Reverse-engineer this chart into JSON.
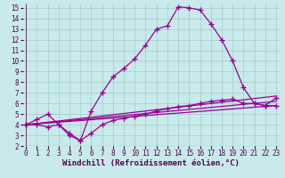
{
  "background_color": "#c8eaea",
  "grid_color": "#a0cccc",
  "line_color": "#990099",
  "xlim": [
    -0.3,
    23.3
  ],
  "ylim": [
    2,
    15.4
  ],
  "xticks": [
    0,
    1,
    2,
    3,
    4,
    5,
    6,
    7,
    8,
    9,
    10,
    11,
    12,
    13,
    14,
    15,
    16,
    17,
    18,
    19,
    20,
    21,
    22,
    23
  ],
  "yticks": [
    2,
    3,
    4,
    5,
    6,
    7,
    8,
    9,
    10,
    11,
    12,
    13,
    14,
    15
  ],
  "xlabel": "Windchill (Refroidissement éolien,°C)",
  "curve_main_x": [
    0,
    1,
    2,
    3,
    4,
    5,
    6,
    7,
    8,
    9,
    10,
    11,
    12,
    13,
    14,
    15,
    16,
    17,
    18,
    19,
    20,
    21,
    22,
    23
  ],
  "curve_main_y": [
    4.0,
    4.5,
    5.0,
    4.0,
    3.0,
    2.5,
    5.3,
    7.0,
    8.5,
    9.3,
    10.2,
    11.5,
    13.0,
    13.3,
    15.1,
    15.0,
    14.8,
    13.5,
    12.0,
    10.0,
    7.5,
    6.0,
    5.8,
    5.8
  ],
  "curve_dip_x": [
    0,
    1,
    2,
    3,
    4,
    5,
    6,
    7,
    8,
    9,
    10,
    11,
    12,
    13,
    14,
    15,
    16,
    17,
    18,
    19,
    20,
    21,
    22,
    23
  ],
  "curve_dip_y": [
    4.0,
    4.0,
    3.8,
    4.0,
    3.2,
    2.5,
    3.2,
    4.0,
    4.4,
    4.6,
    4.8,
    5.0,
    5.3,
    5.5,
    5.7,
    5.8,
    6.0,
    6.2,
    6.3,
    6.4,
    6.0,
    6.0,
    5.8,
    6.5
  ],
  "line1_x": [
    0,
    23
  ],
  "line1_y": [
    4.0,
    5.8
  ],
  "line2_x": [
    0,
    23
  ],
  "line2_y": [
    4.0,
    6.2
  ],
  "line3_x": [
    0,
    23
  ],
  "line3_y": [
    4.0,
    6.7
  ],
  "tick_fontsize": 5.5,
  "xlabel_fontsize": 6.5,
  "linewidth": 0.9,
  "markersize": 2.5
}
